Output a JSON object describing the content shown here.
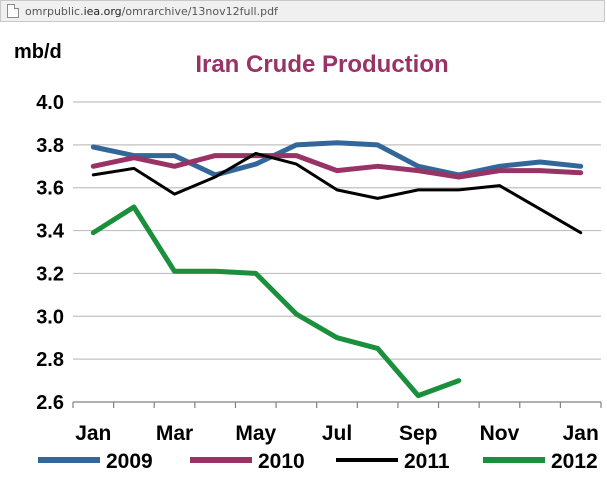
{
  "browser": {
    "url_prefix": "omrpublic.",
    "url_domain": "iea.org",
    "url_path": "/omrarchive/13nov12full.pdf"
  },
  "chart_data": {
    "type": "line",
    "title": "Iran Crude Production",
    "ylabel": "mb/d",
    "xlabel": "",
    "ylim": [
      2.6,
      4.0
    ],
    "yticks": [
      "4.0",
      "3.8",
      "3.6",
      "3.4",
      "3.2",
      "3.0",
      "2.8",
      "2.6"
    ],
    "x_tick_labels": [
      "Jan",
      "Mar",
      "May",
      "Jul",
      "Sep",
      "Nov",
      "Jan"
    ],
    "grid": true,
    "legend_position": "bottom",
    "title_color": "#993366",
    "series": [
      {
        "name": "2009",
        "color": "#336699",
        "width": 5,
        "values": [
          3.79,
          3.75,
          3.75,
          3.66,
          3.71,
          3.8,
          3.81,
          3.8,
          3.7,
          3.66,
          3.7,
          3.72,
          3.7
        ]
      },
      {
        "name": "2010",
        "color": "#993366",
        "width": 5,
        "values": [
          3.7,
          3.74,
          3.7,
          3.75,
          3.75,
          3.75,
          3.68,
          3.7,
          3.68,
          3.65,
          3.68,
          3.68,
          3.67
        ]
      },
      {
        "name": "2011",
        "color": "#000000",
        "width": 3,
        "values": [
          3.66,
          3.69,
          3.57,
          3.65,
          3.76,
          3.71,
          3.59,
          3.55,
          3.59,
          3.59,
          3.61,
          3.5,
          3.39
        ]
      },
      {
        "name": "2012",
        "color": "#1a8f3c",
        "width": 5,
        "values": [
          3.39,
          3.51,
          3.21,
          3.21,
          3.2,
          3.01,
          2.9,
          2.85,
          2.63,
          2.7
        ]
      }
    ]
  }
}
